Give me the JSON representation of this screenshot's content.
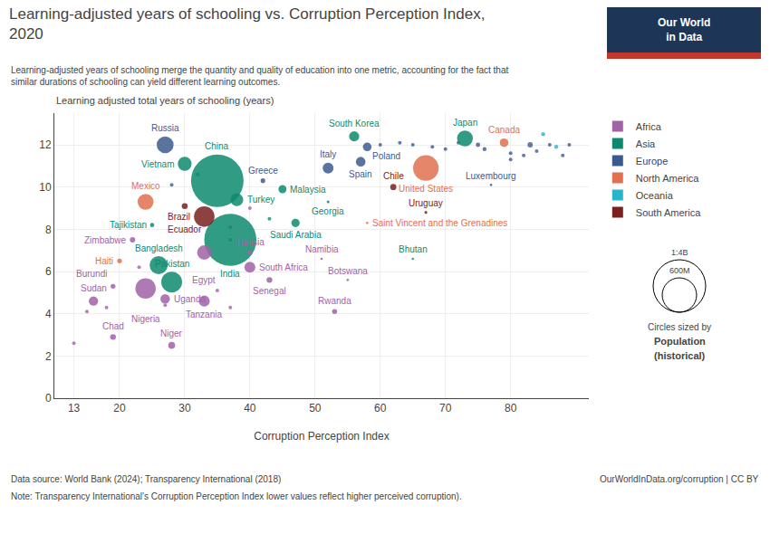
{
  "chart_data": {
    "type": "scatter",
    "title": "Learning-adjusted years of schooling vs. Corruption Perception Index,\n2020",
    "subtitle": "Learning-adjusted years of schooling merge the quantity and quality of education into one metric, accounting for the fact that\nsimilar durations of schooling can yield different learning outcomes.",
    "xlabel": "Corruption Perception Index",
    "ylabel": "Learning adjusted total years of schooling (years)",
    "xlim": [
      10,
      92
    ],
    "ylim": [
      0,
      13.5
    ],
    "xticks": [
      13,
      20,
      30,
      40,
      50,
      60,
      70,
      80
    ],
    "yticks": [
      0,
      2,
      4,
      6,
      8,
      10,
      12
    ],
    "grid": true,
    "legend": "right",
    "regions": [
      {
        "name": "Africa",
        "color": "#a163a7"
      },
      {
        "name": "Asia",
        "color": "#0d8a6e"
      },
      {
        "name": "Europe",
        "color": "#3d5a8e"
      },
      {
        "name": "North America",
        "color": "#e07050"
      },
      {
        "name": "Oceania",
        "color": "#29b5c9"
      },
      {
        "name": "South America",
        "color": "#7a2020"
      }
    ],
    "points": [
      {
        "name": "China",
        "x": 35,
        "y": 10.3,
        "population": 1400,
        "region": "Asia"
      },
      {
        "name": "India",
        "x": 37,
        "y": 7.5,
        "population": 1380,
        "region": "Asia"
      },
      {
        "name": "United States",
        "x": 67,
        "y": 10.9,
        "population": 330,
        "region": "North America"
      },
      {
        "name": "Pakistan",
        "x": 28,
        "y": 5.5,
        "population": 220,
        "region": "Asia"
      },
      {
        "name": "Brazil",
        "x": 33,
        "y": 8.6,
        "population": 213,
        "region": "South America"
      },
      {
        "name": "Nigeria",
        "x": 24,
        "y": 5.2,
        "population": 211,
        "region": "Africa"
      },
      {
        "name": "Bangladesh",
        "x": 26,
        "y": 6.3,
        "population": 165,
        "region": "Asia"
      },
      {
        "name": "Russia",
        "x": 27,
        "y": 12.0,
        "population": 145,
        "region": "Europe"
      },
      {
        "name": "Mexico",
        "x": 24,
        "y": 9.3,
        "population": 128,
        "region": "North America"
      },
      {
        "name": "Japan",
        "x": 73,
        "y": 12.3,
        "population": 126,
        "region": "Asia"
      },
      {
        "name": "Egypt",
        "x": 33,
        "y": 6.9,
        "population": 104,
        "region": "Africa"
      },
      {
        "name": "Vietnam",
        "x": 30,
        "y": 11.1,
        "population": 97,
        "region": "Asia"
      },
      {
        "name": "Turkey",
        "x": 38,
        "y": 9.4,
        "population": 84,
        "region": "Asia"
      },
      {
        "name": "Tanzania",
        "x": 33,
        "y": 4.6,
        "population": 61,
        "region": "Africa"
      },
      {
        "name": "South Africa",
        "x": 40,
        "y": 6.2,
        "population": 60,
        "region": "Africa"
      },
      {
        "name": "Italy",
        "x": 52,
        "y": 10.9,
        "population": 60,
        "region": "Europe"
      },
      {
        "name": "South Korea",
        "x": 56,
        "y": 12.4,
        "population": 52,
        "region": "Asia"
      },
      {
        "name": "Spain",
        "x": 57,
        "y": 11.2,
        "population": 47,
        "region": "Europe"
      },
      {
        "name": "Uganda",
        "x": 27,
        "y": 4.7,
        "population": 46,
        "region": "Africa"
      },
      {
        "name": "Sudan",
        "x": 16,
        "y": 4.6,
        "population": 44,
        "region": "Africa"
      },
      {
        "name": "Canada",
        "x": 79,
        "y": 12.1,
        "population": 38,
        "region": "North America"
      },
      {
        "name": "Poland",
        "x": 58,
        "y": 11.9,
        "population": 38,
        "region": "Europe"
      },
      {
        "name": "Saudi Arabia",
        "x": 47,
        "y": 8.3,
        "population": 35,
        "region": "Asia"
      },
      {
        "name": "Malaysia",
        "x": 45,
        "y": 9.9,
        "population": 33,
        "region": "Asia"
      },
      {
        "name": "Niger",
        "x": 28,
        "y": 2.5,
        "population": 24,
        "region": "Africa"
      },
      {
        "name": "Chile",
        "x": 62,
        "y": 10.0,
        "population": 19,
        "region": "South America"
      },
      {
        "name": "Ecuador",
        "x": 30,
        "y": 9.1,
        "population": 18,
        "region": "South America"
      },
      {
        "name": "Chad",
        "x": 19,
        "y": 2.9,
        "population": 17,
        "region": "Africa"
      },
      {
        "name": "Senegal",
        "x": 43,
        "y": 5.6,
        "population": 17,
        "region": "Africa"
      },
      {
        "name": "Zimbabwe",
        "x": 22,
        "y": 7.5,
        "population": 15,
        "region": "Africa"
      },
      {
        "name": "Rwanda",
        "x": 53,
        "y": 4.1,
        "population": 13,
        "region": "Africa"
      },
      {
        "name": "Burundi",
        "x": 19,
        "y": 5.3,
        "population": 12,
        "region": "Africa"
      },
      {
        "name": "Tunisia",
        "x": 40,
        "y": 6.9,
        "population": 12,
        "region": "Africa"
      },
      {
        "name": "Greece",
        "x": 42,
        "y": 10.3,
        "population": 11,
        "region": "Europe"
      },
      {
        "name": "Haiti",
        "x": 20,
        "y": 6.5,
        "population": 11,
        "region": "North America"
      },
      {
        "name": "Tajikistan",
        "x": 25,
        "y": 8.2,
        "population": 9,
        "region": "Asia"
      },
      {
        "name": "Georgia",
        "x": 52,
        "y": 9.3,
        "population": 4,
        "region": "Asia"
      },
      {
        "name": "Uruguay",
        "x": 67,
        "y": 8.8,
        "population": 4,
        "region": "South America"
      },
      {
        "name": "Namibia",
        "x": 51,
        "y": 6.6,
        "population": 3,
        "region": "Africa"
      },
      {
        "name": "Botswana",
        "x": 55,
        "y": 5.6,
        "population": 2,
        "region": "Africa"
      },
      {
        "name": "Bhutan",
        "x": 65,
        "y": 6.6,
        "population": 1,
        "region": "Asia"
      },
      {
        "name": "Luxembourg",
        "x": 77,
        "y": 10.1,
        "population": 1,
        "region": "Europe"
      },
      {
        "name": "Saint Vincent and the Grenadines",
        "x": 58,
        "y": 8.3,
        "population": 0.1,
        "region": "North America"
      }
    ],
    "extra_points": [
      {
        "x": 85,
        "y": 12.5,
        "region": "Oceania",
        "size": 15
      },
      {
        "x": 87,
        "y": 11.9,
        "region": "Oceania",
        "size": 15
      },
      {
        "x": 88,
        "y": 11.5,
        "region": "Europe",
        "size": 12
      },
      {
        "x": 89,
        "y": 12.0,
        "region": "Europe",
        "size": 12
      },
      {
        "x": 86,
        "y": 12.0,
        "region": "Europe",
        "size": 12
      },
      {
        "x": 84,
        "y": 11.7,
        "region": "Europe",
        "size": 12
      },
      {
        "x": 80,
        "y": 11.6,
        "region": "Europe",
        "size": 12
      },
      {
        "x": 75,
        "y": 12.0,
        "region": "Europe",
        "size": 18
      },
      {
        "x": 72,
        "y": 12.1,
        "region": "Europe",
        "size": 12
      },
      {
        "x": 70,
        "y": 11.8,
        "region": "Europe",
        "size": 12
      },
      {
        "x": 68,
        "y": 11.9,
        "region": "Europe",
        "size": 12
      },
      {
        "x": 65,
        "y": 12.0,
        "region": "Europe",
        "size": 12
      },
      {
        "x": 63,
        "y": 12.1,
        "region": "Europe",
        "size": 12
      },
      {
        "x": 60,
        "y": 12.0,
        "region": "Europe",
        "size": 12
      },
      {
        "x": 80,
        "y": 11.3,
        "region": "Europe",
        "size": 12
      },
      {
        "x": 32,
        "y": 10.6,
        "region": "Asia",
        "size": 15
      },
      {
        "x": 28,
        "y": 10.1,
        "region": "Europe",
        "size": 12
      },
      {
        "x": 40,
        "y": 9.0,
        "region": "Africa",
        "size": 12
      },
      {
        "x": 43,
        "y": 8.5,
        "region": "Asia",
        "size": 12
      },
      {
        "x": 37,
        "y": 7.5,
        "region": "Asia",
        "size": 12
      },
      {
        "x": 23,
        "y": 6.2,
        "region": "Africa",
        "size": 12
      },
      {
        "x": 18,
        "y": 4.3,
        "region": "Africa",
        "size": 12
      },
      {
        "x": 15,
        "y": 4.1,
        "region": "Africa",
        "size": 12
      },
      {
        "x": 13,
        "y": 2.6,
        "region": "Africa",
        "size": 12
      },
      {
        "x": 35,
        "y": 5.1,
        "region": "Africa",
        "size": 12
      },
      {
        "x": 27,
        "y": 4.4,
        "region": "Africa",
        "size": 12
      },
      {
        "x": 37,
        "y": 4.3,
        "region": "Africa",
        "size": 12
      },
      {
        "x": 37,
        "y": 8.1,
        "region": "Asia",
        "size": 12
      },
      {
        "x": 83,
        "y": 12.0,
        "region": "Europe",
        "size": 25
      },
      {
        "x": 82,
        "y": 11.5,
        "region": "Europe",
        "size": 12
      },
      {
        "x": 76,
        "y": 11.8,
        "region": "Europe",
        "size": 15
      }
    ],
    "size_legend": {
      "title": "Circles sized by",
      "name": "Population",
      "note": "(historical)",
      "values": [
        1400,
        600
      ],
      "value_labels": [
        "1:4B",
        "600M"
      ]
    },
    "source": "Data source: World Bank (2024); Transparency International (2018)",
    "note": "Note: Transparency International's Corruption Perception Index lower values reflect higher perceived corruption).",
    "website": "OurWorldInData.org/corruption | CC BY",
    "logo": {
      "text": "Our World\nin Data",
      "colors": [
        "#1d3557",
        "#c0392b",
        "#ffffff"
      ]
    }
  }
}
